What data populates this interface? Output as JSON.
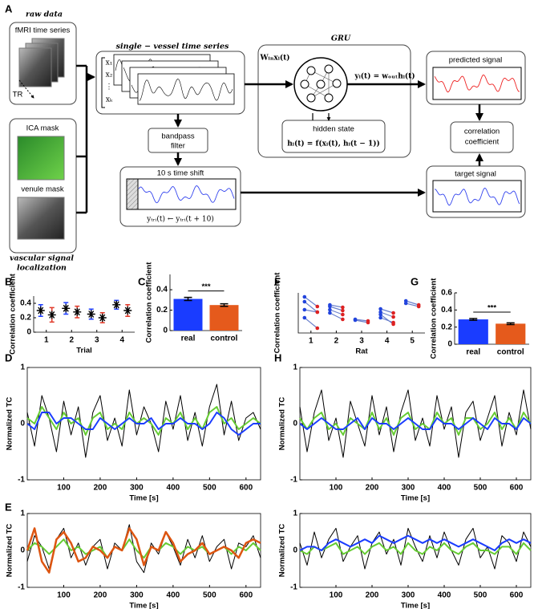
{
  "panel_labels": [
    "A",
    "B",
    "C",
    "D",
    "E",
    "F",
    "G",
    "H"
  ],
  "diagram": {
    "raw_data": "raw data",
    "fmri": "fMRI time series",
    "tr": "TR",
    "ica_mask": "ICA mask",
    "venule_mask": "venule mask",
    "localization": [
      "vascular signal",
      "localization"
    ],
    "single_vessel": "single − vessel time series",
    "vessel_inputs": [
      "x₁",
      "x₂",
      "⋮",
      "xₖ"
    ],
    "bandpass": [
      "bandpass",
      "filter"
    ],
    "time_shift": "10 s time shift",
    "shift_formula": "yₜᵣᵢ(t) ← yₜᵣᵢ(t + 10)",
    "gru": "GRU",
    "gru_input": "Wᵢₙxᵢ(t)",
    "gru_output": "yᵢ(t) = wₒᵤₜhᵢ(t)",
    "hidden_state": "hidden state",
    "hidden_formula": "hᵢ(t) = f(xᵢ(t), hᵢ(t − 1))",
    "predicted": "predicted signal",
    "correlation": [
      "correlation",
      "coefficient"
    ],
    "target": "target signal"
  },
  "chart_data": [
    {
      "type": "errorbar",
      "ylabel": "Correlation coefficient",
      "xlabel": "Trial",
      "x": [
        1,
        2,
        3,
        4
      ],
      "xlim": [
        0.5,
        4.5
      ],
      "xticks": [
        1,
        2,
        3,
        4
      ],
      "ylim": [
        0,
        0.5
      ],
      "yticks": [
        0,
        0.2,
        0.4
      ],
      "series": [
        {
          "color": "#1f3fff",
          "values": [
            0.3,
            0.33,
            0.25,
            0.38
          ],
          "errors": [
            0.08,
            0.08,
            0.07,
            0.06
          ]
        },
        {
          "color": "#e03a2a",
          "values": [
            0.24,
            0.28,
            0.2,
            0.3
          ],
          "errors": [
            0.1,
            0.08,
            0.07,
            0.08
          ]
        }
      ]
    },
    {
      "type": "bar",
      "ylabel": "Correlation coefficient",
      "categories": [
        "real",
        "control"
      ],
      "values": [
        0.31,
        0.25
      ],
      "errors": [
        0.015,
        0.012
      ],
      "colors": [
        "#1a3cff",
        "#e55a1c"
      ],
      "ylim": [
        0,
        0.55
      ],
      "yticks": [
        0,
        0.2,
        0.4
      ],
      "annotation": "***"
    },
    {
      "type": "paired",
      "ylabel": "Correlation coefficient",
      "xlabel": "Rat",
      "x": [
        1,
        1,
        1,
        1,
        2,
        2,
        2,
        2,
        3,
        3,
        4,
        4,
        4,
        4,
        5,
        5
      ],
      "xlim": [
        0.5,
        5.5
      ],
      "xticks": [
        1,
        2,
        3,
        4,
        5
      ],
      "ylim": [
        0,
        0.5
      ],
      "series": [
        {
          "color": "#2244dd",
          "values": [
            0.45,
            0.39,
            0.29,
            0.19,
            0.35,
            0.33,
            0.29,
            0.25,
            0.17,
            0.16,
            0.3,
            0.26,
            0.23,
            0.19,
            0.4,
            0.37
          ]
        },
        {
          "color": "#dd2222",
          "values": [
            0.33,
            0.26,
            0.26,
            0.06,
            0.32,
            0.28,
            0.23,
            0.17,
            0.15,
            0.13,
            0.25,
            0.2,
            0.11,
            0.13,
            0.35,
            0.33
          ]
        }
      ]
    },
    {
      "type": "bar",
      "ylabel": "Correlation coefficient",
      "categories": [
        "real",
        "control"
      ],
      "values": [
        0.29,
        0.24
      ],
      "errors": [
        0.01,
        0.01
      ],
      "colors": [
        "#1a3cff",
        "#e55a1c"
      ],
      "ylim": [
        0,
        0.6
      ],
      "yticks": [
        0,
        0.2,
        0.4,
        0.6
      ],
      "annotation": "***"
    },
    {
      "type": "line",
      "ylabel": "Normalized TC",
      "xlabel": "Time [s]",
      "x": [
        0,
        20,
        40,
        60,
        80,
        100,
        120,
        140,
        160,
        180,
        200,
        220,
        240,
        260,
        280,
        300,
        320,
        340,
        360,
        380,
        400,
        420,
        440,
        460,
        480,
        500,
        520,
        540,
        560,
        580,
        600,
        620,
        640
      ],
      "xlim": [
        0,
        640
      ],
      "xticks": [
        100,
        200,
        300,
        400,
        500,
        600
      ],
      "ylim": [
        -1,
        1
      ],
      "yticks": [
        -1,
        0,
        1
      ],
      "series": [
        {
          "color": "#000000",
          "width": 1,
          "values": [
            0.2,
            -0.4,
            0.5,
            0.1,
            -0.5,
            0.4,
            -0.2,
            0.3,
            -0.6,
            0.2,
            0.5,
            -0.3,
            0.1,
            -0.4,
            0.6,
            -0.2,
            0.3,
            0.0,
            -0.5,
            0.4,
            -0.1,
            0.5,
            -0.3,
            0.2,
            -0.4,
            0.3,
            0.7,
            -0.2,
            0.4,
            -0.3,
            0.1,
            0.2,
            -0.1
          ]
        },
        {
          "color": "#66cc33",
          "width": 2,
          "values": [
            0.1,
            0.0,
            0.3,
            0.1,
            -0.1,
            0.2,
            0.0,
            0.1,
            -0.2,
            0.1,
            0.2,
            -0.1,
            0.0,
            -0.1,
            0.2,
            0.0,
            0.1,
            0.0,
            -0.2,
            0.1,
            0.0,
            0.2,
            -0.1,
            0.1,
            -0.1,
            0.2,
            0.3,
            0.0,
            0.1,
            -0.1,
            0.0,
            0.1,
            0.0
          ]
        },
        {
          "color": "#1a3cff",
          "width": 2,
          "values": [
            0.0,
            -0.1,
            0.2,
            0.2,
            0.0,
            0.1,
            0.1,
            0.0,
            -0.1,
            -0.1,
            0.1,
            0.0,
            -0.1,
            0.0,
            0.1,
            0.0,
            0.0,
            0.1,
            -0.1,
            0.0,
            0.0,
            0.1,
            0.0,
            0.0,
            -0.1,
            0.0,
            0.2,
            0.1,
            -0.1,
            -0.2,
            -0.1,
            0.0,
            0.0
          ]
        }
      ]
    },
    {
      "type": "line",
      "ylabel": "Normalized TC",
      "xlabel": "Time [s]",
      "x": [
        0,
        20,
        40,
        60,
        80,
        100,
        120,
        140,
        160,
        180,
        200,
        220,
        240,
        260,
        280,
        300,
        320,
        340,
        360,
        380,
        400,
        420,
        440,
        460,
        480,
        500,
        520,
        540,
        560,
        580,
        600,
        620,
        640
      ],
      "xlim": [
        0,
        640
      ],
      "xticks": [
        100,
        200,
        300,
        400,
        500,
        600
      ],
      "ylim": [
        -1,
        1
      ],
      "yticks": [
        -1,
        0,
        1
      ],
      "series": [
        {
          "color": "#000000",
          "width": 1,
          "values": [
            -0.3,
            0.4,
            0.1,
            -0.5,
            0.3,
            0.6,
            -0.2,
            0.2,
            -0.4,
            0.1,
            0.3,
            -0.5,
            0.2,
            0.0,
            0.7,
            -0.3,
            -0.6,
            0.2,
            -0.1,
            0.5,
            0.1,
            -0.4,
            0.3,
            -0.2,
            0.4,
            -0.3,
            0.1,
            0.3,
            -0.5,
            0.2,
            0.1,
            0.4,
            -0.2
          ]
        },
        {
          "color": "#66cc33",
          "width": 2,
          "values": [
            0.0,
            0.2,
            0.1,
            -0.1,
            0.1,
            0.3,
            0.0,
            0.1,
            -0.1,
            0.0,
            0.1,
            -0.2,
            0.1,
            0.0,
            0.3,
            0.0,
            -0.2,
            0.1,
            0.0,
            0.2,
            0.1,
            -0.1,
            0.1,
            0.0,
            0.1,
            -0.1,
            0.0,
            0.1,
            -0.1,
            0.1,
            0.0,
            0.2,
            0.0
          ]
        },
        {
          "color": "#dd5511",
          "width": 2.5,
          "values": [
            0.0,
            0.6,
            -0.3,
            -0.6,
            0.3,
            0.5,
            0.2,
            -0.3,
            -0.2,
            0.1,
            0.0,
            -0.2,
            0.1,
            0.0,
            0.6,
            0.3,
            -0.4,
            0.1,
            0.0,
            0.5,
            0.2,
            -0.3,
            -0.1,
            0.0,
            0.2,
            -0.1,
            0.0,
            0.1,
            0.0,
            -0.2,
            0.2,
            0.3,
            0.2
          ]
        }
      ]
    },
    {
      "type": "line",
      "ylabel": "Normalized TC",
      "xlabel": "Time [s]",
      "x": [
        0,
        20,
        40,
        60,
        80,
        100,
        120,
        140,
        160,
        180,
        200,
        220,
        240,
        260,
        280,
        300,
        320,
        340,
        360,
        380,
        400,
        420,
        440,
        460,
        480,
        500,
        520,
        540,
        560,
        580,
        600,
        620,
        640
      ],
      "xlim": [
        0,
        640
      ],
      "xticks": [
        100,
        200,
        300,
        400,
        500,
        600
      ],
      "ylim": [
        -1,
        1
      ],
      "yticks": [
        -1,
        0,
        1
      ],
      "series": [
        {
          "color": "#000000",
          "width": 1,
          "values": [
            0.3,
            -0.5,
            0.2,
            0.6,
            -0.3,
            0.1,
            -0.6,
            0.4,
            0.0,
            -0.4,
            0.5,
            -0.2,
            0.3,
            -0.5,
            0.2,
            0.6,
            -0.3,
            0.1,
            -0.4,
            0.5,
            -0.1,
            0.3,
            -0.6,
            0.2,
            0.4,
            -0.3,
            0.1,
            0.5,
            -0.4,
            0.2,
            -0.2,
            0.6,
            -0.1
          ]
        },
        {
          "color": "#66cc33",
          "width": 2,
          "values": [
            0.1,
            -0.1,
            0.1,
            0.2,
            -0.1,
            0.0,
            -0.2,
            0.1,
            0.0,
            -0.1,
            0.2,
            -0.1,
            0.1,
            -0.2,
            0.1,
            0.2,
            -0.1,
            0.0,
            -0.1,
            0.2,
            0.0,
            0.1,
            -0.2,
            0.1,
            0.1,
            -0.1,
            0.0,
            0.2,
            -0.1,
            0.1,
            -0.1,
            0.2,
            0.0
          ]
        },
        {
          "color": "#1a3cff",
          "width": 2,
          "values": [
            0.0,
            -0.1,
            0.0,
            0.1,
            0.0,
            -0.1,
            -0.1,
            0.0,
            0.1,
            -0.1,
            0.1,
            0.0,
            0.0,
            -0.1,
            0.0,
            0.1,
            0.0,
            -0.1,
            -0.1,
            0.1,
            0.0,
            0.0,
            -0.1,
            0.0,
            0.1,
            0.0,
            -0.1,
            0.1,
            0.0,
            0.0,
            -0.1,
            0.1,
            0.0
          ]
        }
      ]
    },
    {
      "type": "line",
      "ylabel": "Normalized TC",
      "xlabel": "Time [s]",
      "x": [
        0,
        20,
        40,
        60,
        80,
        100,
        120,
        140,
        160,
        180,
        200,
        220,
        240,
        260,
        280,
        300,
        320,
        340,
        360,
        380,
        400,
        420,
        440,
        460,
        480,
        500,
        520,
        540,
        560,
        580,
        600,
        620,
        640
      ],
      "xlim": [
        0,
        640
      ],
      "xticks": [
        100,
        200,
        300,
        400,
        500,
        600
      ],
      "ylim": [
        -1,
        1
      ],
      "yticks": [
        -1,
        0,
        1
      ],
      "series": [
        {
          "color": "#000000",
          "width": 1,
          "values": [
            0.2,
            -0.4,
            0.5,
            -0.2,
            0.3,
            0.6,
            -0.3,
            0.1,
            0.4,
            -0.5,
            0.2,
            0.5,
            -0.1,
            0.3,
            -0.4,
            0.6,
            0.1,
            -0.3,
            0.4,
            -0.2,
            0.5,
            0.0,
            -0.4,
            0.3,
            0.6,
            -0.2,
            0.1,
            -0.5,
            0.4,
            0.2,
            -0.3,
            0.5,
            0.1
          ]
        },
        {
          "color": "#66cc33",
          "width": 2,
          "values": [
            0.0,
            -0.1,
            0.1,
            0.0,
            0.1,
            0.2,
            -0.1,
            0.0,
            0.1,
            -0.1,
            0.1,
            0.2,
            0.0,
            0.1,
            -0.1,
            0.2,
            0.0,
            -0.1,
            0.1,
            0.0,
            0.2,
            0.0,
            -0.1,
            0.1,
            0.2,
            0.0,
            0.0,
            -0.1,
            0.1,
            0.1,
            -0.1,
            0.2,
            0.0
          ]
        },
        {
          "color": "#1a3cff",
          "width": 2,
          "values": [
            0.0,
            0.1,
            0.1,
            0.0,
            0.2,
            0.3,
            0.2,
            0.1,
            0.2,
            0.3,
            0.2,
            0.4,
            0.3,
            0.2,
            0.3,
            0.4,
            0.3,
            0.2,
            0.3,
            0.2,
            0.3,
            0.2,
            0.1,
            0.2,
            0.3,
            0.2,
            0.1,
            0.0,
            0.2,
            0.3,
            0.2,
            0.3,
            0.2
          ]
        }
      ]
    }
  ]
}
